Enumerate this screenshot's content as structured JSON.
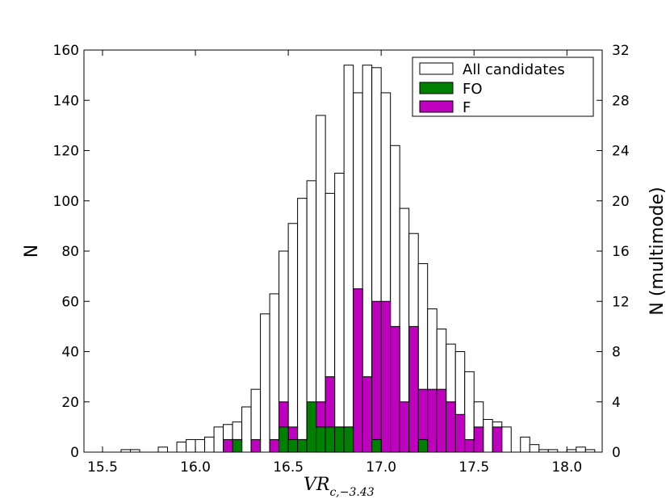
{
  "chart_data": {
    "type": "bar",
    "title": "",
    "xlabel": {
      "main": "VR",
      "subscript": "c,−3.43"
    },
    "ylabel": "N",
    "y2label": "N (multimode)",
    "xlim": [
      15.4,
      18.19
    ],
    "ylim": [
      0,
      160
    ],
    "y2lim": [
      0,
      32
    ],
    "x_ticks": [
      "15.5",
      "16.0",
      "16.5",
      "17.0",
      "17.5",
      "18.0"
    ],
    "y_ticks": [
      "0",
      "20",
      "40",
      "60",
      "80",
      "100",
      "120",
      "140",
      "160"
    ],
    "y2_ticks": [
      "0",
      "4",
      "8",
      "12",
      "16",
      "20",
      "24",
      "28",
      "32"
    ],
    "grid": false,
    "legend": "top-right",
    "bin_width": 0.05,
    "series": [
      {
        "name": "All candidates",
        "axis": "left",
        "color": "#ffffff",
        "points": [
          {
            "x": 15.625,
            "y": 1
          },
          {
            "x": 15.675,
            "y": 1
          },
          {
            "x": 15.775,
            "y": 0
          },
          {
            "x": 15.825,
            "y": 2
          },
          {
            "x": 15.925,
            "y": 4
          },
          {
            "x": 15.975,
            "y": 5
          },
          {
            "x": 16.025,
            "y": 5
          },
          {
            "x": 16.075,
            "y": 6
          },
          {
            "x": 16.125,
            "y": 10
          },
          {
            "x": 16.175,
            "y": 11
          },
          {
            "x": 16.225,
            "y": 12
          },
          {
            "x": 16.275,
            "y": 18
          },
          {
            "x": 16.325,
            "y": 25
          },
          {
            "x": 16.375,
            "y": 55
          },
          {
            "x": 16.425,
            "y": 63
          },
          {
            "x": 16.475,
            "y": 80
          },
          {
            "x": 16.525,
            "y": 91
          },
          {
            "x": 16.575,
            "y": 101
          },
          {
            "x": 16.625,
            "y": 108
          },
          {
            "x": 16.675,
            "y": 134
          },
          {
            "x": 16.725,
            "y": 103
          },
          {
            "x": 16.775,
            "y": 111
          },
          {
            "x": 16.825,
            "y": 154
          },
          {
            "x": 16.875,
            "y": 143
          },
          {
            "x": 16.925,
            "y": 154
          },
          {
            "x": 16.975,
            "y": 153
          },
          {
            "x": 17.025,
            "y": 143
          },
          {
            "x": 17.075,
            "y": 122
          },
          {
            "x": 17.125,
            "y": 97
          },
          {
            "x": 17.175,
            "y": 87
          },
          {
            "x": 17.225,
            "y": 75
          },
          {
            "x": 17.275,
            "y": 57
          },
          {
            "x": 17.325,
            "y": 49
          },
          {
            "x": 17.375,
            "y": 43
          },
          {
            "x": 17.425,
            "y": 40
          },
          {
            "x": 17.475,
            "y": 32
          },
          {
            "x": 17.525,
            "y": 20
          },
          {
            "x": 17.575,
            "y": 13
          },
          {
            "x": 17.625,
            "y": 12
          },
          {
            "x": 17.675,
            "y": 10
          },
          {
            "x": 17.775,
            "y": 6
          },
          {
            "x": 17.825,
            "y": 3
          },
          {
            "x": 17.875,
            "y": 1
          },
          {
            "x": 17.925,
            "y": 1
          },
          {
            "x": 18.025,
            "y": 1
          },
          {
            "x": 18.075,
            "y": 2
          },
          {
            "x": 18.125,
            "y": 1
          }
        ]
      },
      {
        "name": "F",
        "axis": "right",
        "color": "#bf00bf",
        "points": [
          {
            "x": 16.175,
            "y": 1
          },
          {
            "x": 16.225,
            "y": 1
          },
          {
            "x": 16.325,
            "y": 1
          },
          {
            "x": 16.425,
            "y": 1
          },
          {
            "x": 16.475,
            "y": 4
          },
          {
            "x": 16.525,
            "y": 2
          },
          {
            "x": 16.575,
            "y": 1
          },
          {
            "x": 16.625,
            "y": 1
          },
          {
            "x": 16.675,
            "y": 4
          },
          {
            "x": 16.725,
            "y": 6
          },
          {
            "x": 16.775,
            "y": 2
          },
          {
            "x": 16.825,
            "y": 2
          },
          {
            "x": 16.875,
            "y": 13
          },
          {
            "x": 16.925,
            "y": 6
          },
          {
            "x": 16.975,
            "y": 12
          },
          {
            "x": 17.025,
            "y": 12
          },
          {
            "x": 17.075,
            "y": 10
          },
          {
            "x": 17.125,
            "y": 4
          },
          {
            "x": 17.175,
            "y": 10
          },
          {
            "x": 17.225,
            "y": 5
          },
          {
            "x": 17.275,
            "y": 5
          },
          {
            "x": 17.325,
            "y": 5
          },
          {
            "x": 17.375,
            "y": 4
          },
          {
            "x": 17.425,
            "y": 3
          },
          {
            "x": 17.475,
            "y": 1
          },
          {
            "x": 17.525,
            "y": 2
          },
          {
            "x": 17.625,
            "y": 2
          }
        ]
      },
      {
        "name": "FO",
        "axis": "right",
        "color": "#008000",
        "points": [
          {
            "x": 16.225,
            "y": 1
          },
          {
            "x": 16.475,
            "y": 2
          },
          {
            "x": 16.525,
            "y": 1
          },
          {
            "x": 16.575,
            "y": 1
          },
          {
            "x": 16.625,
            "y": 4
          },
          {
            "x": 16.675,
            "y": 2
          },
          {
            "x": 16.725,
            "y": 2
          },
          {
            "x": 16.775,
            "y": 2
          },
          {
            "x": 16.825,
            "y": 2
          },
          {
            "x": 16.975,
            "y": 1
          },
          {
            "x": 17.225,
            "y": 1
          }
        ]
      }
    ],
    "legend_entries": [
      {
        "label": "All candidates",
        "color": "#ffffff"
      },
      {
        "label": "FO",
        "color": "#008000"
      },
      {
        "label": "F",
        "color": "#bf00bf"
      }
    ]
  }
}
